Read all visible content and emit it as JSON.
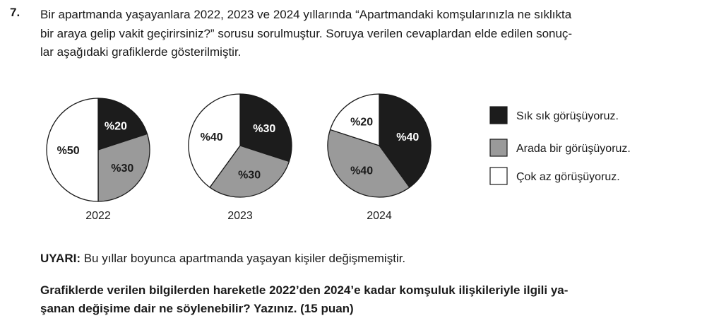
{
  "question": {
    "number": "7.",
    "lines": [
      "Bir apartmanda yaşayanlara 2022, 2023 ve 2024 yıllarında “Apartmandaki komşularınızla ne sıklıkta",
      "bir araya gelip vakit geçirirsiniz?” sorusu sorulmuştur. Soruya verilen cevaplardan elde edilen sonuç-",
      "lar aşağıdaki grafiklerde gösterilmiştir."
    ]
  },
  "chart_data": {
    "type": "pie",
    "legend_position": "right",
    "categories": [
      "Sık sık görüşüyoruz.",
      "Arada bir görüşüyoruz.",
      "Çok az görüşüyoruz."
    ],
    "colors": [
      "#1c1c1c",
      "#9a9a9a",
      "#ffffff"
    ],
    "charts": [
      {
        "year": "2022",
        "values": [
          20,
          30,
          50
        ],
        "labels": [
          "%20",
          "%30",
          "%50"
        ]
      },
      {
        "year": "2023",
        "values": [
          30,
          30,
          40
        ],
        "labels": [
          "%30",
          "%30",
          "%40"
        ]
      },
      {
        "year": "2024",
        "values": [
          40,
          40,
          20
        ],
        "labels": [
          "%40",
          "%40",
          "%20"
        ]
      }
    ]
  },
  "warning": {
    "label": "UYARI:",
    "text": " Bu yıllar boyunca apartmanda yaşayan kişiler değişmemiştir."
  },
  "prompt": {
    "lines": [
      "Grafiklerde verilen bilgilerden hareketle 2022’den 2024’e kadar komşuluk ilişkileriyle ilgili ya-",
      "şanan değişime dair ne söylenebilir? Yazınız. (15 puan)"
    ]
  }
}
